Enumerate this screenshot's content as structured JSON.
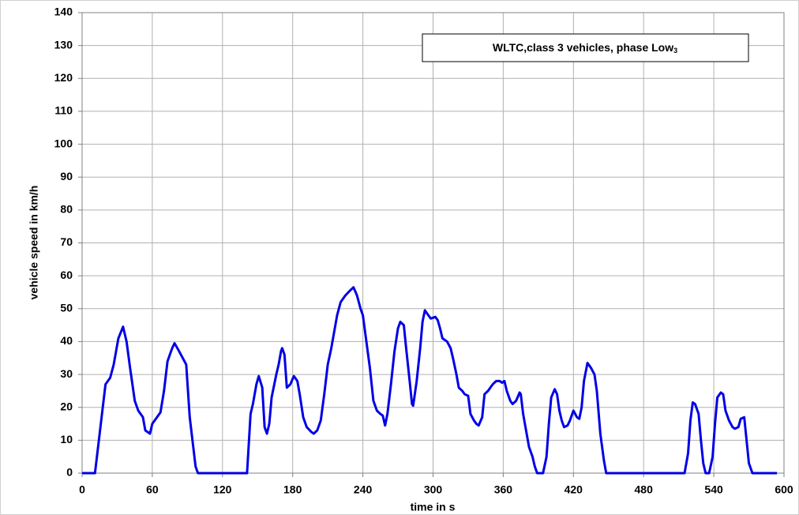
{
  "chart_data": {
    "type": "line",
    "title": "WLTC,class 3 vehicles, phase Low",
    "title_subscript": "3",
    "x_label": "time in s",
    "y_label": "vehicle speed in km/h",
    "xlim": [
      0,
      600
    ],
    "xticks": [
      0,
      60,
      120,
      180,
      240,
      300,
      360,
      420,
      480,
      540,
      600
    ],
    "ylim": [
      0,
      140
    ],
    "yticks": [
      0,
      10,
      20,
      30,
      40,
      50,
      60,
      70,
      80,
      90,
      100,
      110,
      120,
      130,
      140
    ],
    "grid": true,
    "series": [
      {
        "color": "#0000e6",
        "x": [
          0,
          11,
          20,
          24,
          27,
          31,
          35,
          38,
          41,
          45,
          48,
          50,
          52,
          54,
          58,
          60,
          64,
          67,
          70,
          73,
          77,
          79,
          83,
          86,
          89,
          92,
          95,
          97,
          99,
          141,
          144,
          146,
          149,
          151,
          154,
          156,
          158,
          160,
          162,
          166,
          168,
          170,
          171,
          173,
          175,
          178,
          181,
          184,
          186,
          189,
          192,
          196,
          198,
          201,
          204,
          207,
          210,
          213,
          215,
          218,
          221,
          225,
          229,
          232,
          235,
          238,
          240,
          243,
          246,
          249,
          252,
          255,
          257,
          259,
          261,
          264,
          267,
          270,
          272,
          275,
          277,
          280,
          282,
          283,
          286,
          289,
          291,
          293,
          296,
          298,
          302,
          304,
          306,
          308,
          312,
          315,
          317,
          320,
          322,
          325,
          327,
          330,
          332,
          335,
          337,
          339,
          342,
          344,
          347,
          351,
          354,
          357,
          359,
          361,
          363,
          366,
          368,
          371,
          374,
          375,
          377,
          380,
          382,
          385,
          387,
          389,
          394,
          397,
          399,
          401,
          404,
          406,
          408,
          410,
          412,
          415,
          417,
          420,
          423,
          425,
          427,
          429,
          432,
          435,
          438,
          440,
          443,
          446,
          448,
          515,
          518,
          520,
          522,
          524,
          527,
          529,
          531,
          533,
          536,
          539,
          541,
          543,
          546,
          548,
          550,
          553,
          556,
          558,
          561,
          563,
          566,
          568,
          570,
          573,
          594
        ],
        "values": [
          0,
          0,
          27,
          29,
          33,
          41,
          44.5,
          40,
          32,
          22,
          19,
          18,
          17,
          13,
          12,
          15,
          17,
          18.5,
          25,
          34,
          38,
          39.5,
          37,
          35,
          33,
          17,
          8,
          2,
          0,
          0,
          18,
          21,
          27,
          29.5,
          26,
          14,
          12,
          15,
          23,
          30,
          33,
          37,
          38,
          36,
          26,
          27,
          29.5,
          28,
          24,
          17,
          14,
          12.5,
          12,
          13,
          16,
          24,
          33,
          38,
          42,
          48,
          52,
          54,
          55.5,
          56.5,
          54,
          50,
          48,
          40,
          32,
          22,
          19,
          18,
          17.5,
          14.5,
          18,
          27,
          37,
          44,
          46,
          45,
          38,
          28,
          21,
          20.5,
          28,
          38,
          46,
          49.5,
          48,
          47,
          47.5,
          46.5,
          44,
          41,
          40,
          38,
          35,
          30,
          26,
          25,
          24,
          23.5,
          18,
          16,
          15,
          14.5,
          17,
          24,
          25,
          27,
          28,
          28,
          27.5,
          28,
          25,
          22,
          21,
          22,
          24.5,
          24,
          18,
          12,
          8,
          5,
          2,
          0,
          0,
          5,
          15,
          23,
          25.5,
          24,
          19,
          16,
          14,
          14.5,
          16,
          19,
          17,
          16.5,
          20,
          28,
          33.5,
          32,
          30,
          25,
          12,
          4,
          0,
          0,
          6,
          16,
          21.5,
          21,
          18,
          10,
          3,
          0,
          0,
          5,
          15,
          23,
          24.5,
          24,
          19,
          16,
          14,
          13.5,
          14,
          16.5,
          17,
          10,
          3,
          0,
          0
        ]
      }
    ]
  }
}
